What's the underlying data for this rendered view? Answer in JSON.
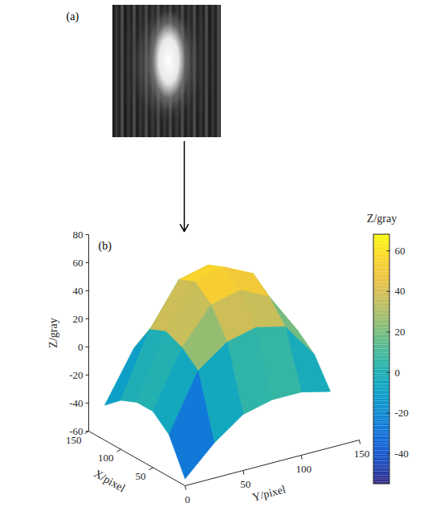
{
  "chart_data": {
    "type": "surface",
    "panel_labels": [
      "(a)",
      "(b)"
    ],
    "x_label": "X/pixel",
    "y_label": "Y/pixel",
    "z_label": "Z/gray",
    "xlim": [
      0,
      150
    ],
    "xticks": [
      50,
      100,
      150
    ],
    "ylim": [
      0,
      150
    ],
    "yticks": [
      0,
      50,
      100,
      150
    ],
    "zlim": [
      -60,
      80
    ],
    "zticks": [
      -60,
      -40,
      -20,
      0,
      20,
      40,
      60,
      80
    ],
    "x": [
      0,
      25,
      50,
      75,
      100,
      125
    ],
    "y": [
      0,
      25,
      50,
      75,
      100,
      125
    ],
    "z": [
      [
        -55,
        -35,
        -20,
        -15,
        -15,
        -20
      ],
      [
        -30,
        10,
        25,
        30,
        25,
        0
      ],
      [
        -20,
        20,
        45,
        50,
        40,
        10
      ],
      [
        -20,
        25,
        55,
        60,
        50,
        15
      ],
      [
        -25,
        20,
        50,
        55,
        45,
        10
      ],
      [
        -35,
        0,
        20,
        25,
        20,
        -10
      ]
    ],
    "color": "parula",
    "colorbar": {
      "label": "Z/gray",
      "range": [
        -55,
        68
      ],
      "ticks": [
        -40,
        -20,
        0,
        20,
        40,
        60
      ]
    }
  }
}
